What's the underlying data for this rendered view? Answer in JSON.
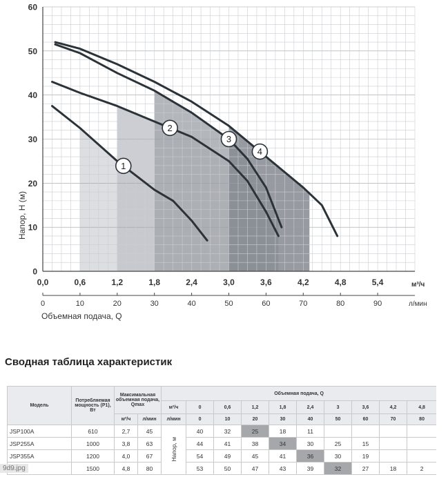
{
  "chart_data": {
    "type": "line",
    "ylabel": "Напор, Н (м)",
    "x_unit": "м³/ч",
    "x2_unit": "л/мин",
    "x2_label": "Объемная подача, Q",
    "xlim": [
      0,
      6.0
    ],
    "ylim": [
      0,
      60
    ],
    "x_ticks": [
      "0,0",
      "0,6",
      "1,2",
      "1,8",
      "2,4",
      "3,0",
      "3,6",
      "4,2",
      "4,8",
      "5,4"
    ],
    "x2_ticks": [
      "0",
      "10",
      "20",
      "30",
      "40",
      "50",
      "60",
      "70",
      "80",
      "90"
    ],
    "y_ticks": [
      "0",
      "10",
      "20",
      "30",
      "40",
      "50",
      "60"
    ],
    "grid": true,
    "series": [
      {
        "name": "1",
        "color": "#2b3238",
        "points": [
          [
            0.15,
            37.5
          ],
          [
            0.6,
            32.5
          ],
          [
            1.2,
            25.0
          ],
          [
            1.8,
            18.5
          ],
          [
            2.1,
            16.0
          ],
          [
            2.4,
            11.5
          ],
          [
            2.65,
            7.0
          ]
        ]
      },
      {
        "name": "2",
        "color": "#2b3238",
        "points": [
          [
            0.15,
            43.0
          ],
          [
            0.6,
            40.5
          ],
          [
            1.2,
            37.5
          ],
          [
            1.8,
            34.0
          ],
          [
            2.4,
            30.5
          ],
          [
            3.0,
            25.0
          ],
          [
            3.3,
            20.5
          ],
          [
            3.6,
            13.5
          ],
          [
            3.8,
            8.0
          ]
        ]
      },
      {
        "name": "3",
        "color": "#2b3238",
        "points": [
          [
            0.2,
            51.5
          ],
          [
            0.6,
            49.5
          ],
          [
            1.2,
            45.0
          ],
          [
            1.8,
            41.0
          ],
          [
            2.4,
            36.0
          ],
          [
            3.0,
            30.0
          ],
          [
            3.3,
            25.5
          ],
          [
            3.6,
            19.0
          ],
          [
            3.85,
            10.0
          ]
        ]
      },
      {
        "name": "4",
        "color": "#2b3238",
        "points": [
          [
            0.2,
            52.0
          ],
          [
            0.6,
            50.5
          ],
          [
            1.2,
            47.0
          ],
          [
            1.8,
            43.0
          ],
          [
            2.4,
            38.5
          ],
          [
            3.0,
            33.0
          ],
          [
            3.6,
            26.0
          ],
          [
            4.2,
            19.0
          ],
          [
            4.5,
            15.0
          ],
          [
            4.75,
            8.0
          ]
        ]
      }
    ],
    "operating_ranges": [
      {
        "x": [
          0.6,
          3.6
        ],
        "color": "#d6d8dc"
      },
      {
        "x": [
          1.2,
          3.6
        ],
        "color": "#c4c6cb"
      },
      {
        "x": [
          1.8,
          3.8
        ],
        "color": "#a6a9ae"
      },
      {
        "x": [
          3.0,
          4.3
        ],
        "color": "#858a90"
      }
    ]
  },
  "section_title": "Сводная таблица характеристик",
  "table": {
    "h_model": "Модель",
    "h_power": "Потребляемая мощность (P1), Вт",
    "h_qmax": "Максимальная объемная подача, Qmax",
    "h_flow": "Объемная подача, Q",
    "h_unit_m3": "м³/ч",
    "h_unit_lmin": "л/мин",
    "flow_m3": [
      "0",
      "0,6",
      "1,2",
      "1,8",
      "2,4",
      "3",
      "3,6",
      "4,2",
      "4,8"
    ],
    "flow_lmin": [
      "0",
      "10",
      "20",
      "30",
      "40",
      "50",
      "60",
      "70",
      "80"
    ],
    "head_label": "Напор, м",
    "rows": [
      {
        "model": "JSP100A",
        "power": "610",
        "qm3": "2,7",
        "qlmin": "45",
        "heads": [
          "40",
          "32",
          "25",
          "18",
          "11",
          "",
          "",
          "",
          ""
        ],
        "hl": 2
      },
      {
        "model": "JSP255A",
        "power": "1000",
        "qm3": "3,8",
        "qlmin": "63",
        "heads": [
          "44",
          "41",
          "38",
          "34",
          "30",
          "25",
          "15",
          "",
          ""
        ],
        "hl": 3
      },
      {
        "model": "JSP355A",
        "power": "1200",
        "qm3": "4,0",
        "qlmin": "67",
        "heads": [
          "54",
          "49",
          "45",
          "41",
          "36",
          "30",
          "19",
          "",
          ""
        ],
        "hl": 4
      },
      {
        "model": "5A",
        "power": "1500",
        "qm3": "4,8",
        "qlmin": "80",
        "heads": [
          "53",
          "50",
          "47",
          "43",
          "39",
          "32",
          "27",
          "18",
          "2"
        ],
        "hl": 5
      }
    ]
  },
  "watermark": "9d9.jpg"
}
